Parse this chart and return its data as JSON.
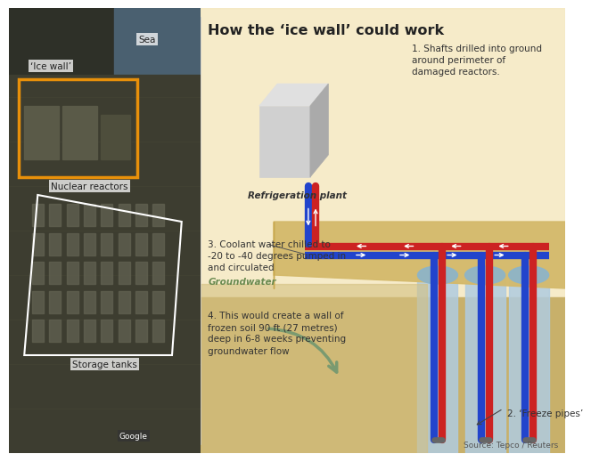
{
  "title": "How the ‘ice wall’ could work",
  "left_panel_bg": "#1a1a1a",
  "right_panel_bg": "#ffffff",
  "satellite_image_placeholder": true,
  "labels": {
    "sea": "Sea",
    "ice_wall": "‘Ice wall’",
    "nuclear_reactors": "Nuclear reactors",
    "storage_tanks": "Storage tanks",
    "google": "Google",
    "refrig_plant": "Refrigeration plant",
    "note1": "1. Shafts drilled into ground\naround perimeter of\ndamaged reactors.",
    "note2": "2. ‘Freeze pipes’",
    "note3": "3. Coolant water chilled to\n-20 to -40 degrees pumped in\nand circulated",
    "note4": "4. This would create a wall of\nfrozen soil 90 ft (27 metres)\ndeep in 6-8 weeks preventing\ngroundwater flow",
    "groundwater": "Groundwater",
    "source": "Source: Tepco / Reuters"
  },
  "colors": {
    "title_text": "#222222",
    "label_text": "#333333",
    "label_bg": "rgba(255,255,255,0.75)",
    "orange_box": "#e8900a",
    "white_outline": "#ffffff",
    "ground_surface": "#d4b96a",
    "ground_deep": "#c8a84e",
    "water_bg": "#b0cce0",
    "water_deep": "#8ab4cc",
    "pipe_red": "#cc2222",
    "pipe_blue": "#2244cc",
    "pipe_gray": "#888888",
    "refrig_box_light": "#d0d0d0",
    "refrig_box_dark": "#aaaaaa",
    "arrow_groundwater": "#7a9a70",
    "sky_bg": "#f5e8c0",
    "note_text": "#333333",
    "source_text": "#555555"
  }
}
